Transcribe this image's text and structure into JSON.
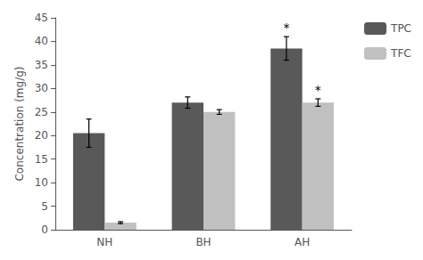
{
  "chart_data": {
    "type": "bar",
    "categories": [
      "NH",
      "BH",
      "AH"
    ],
    "series": [
      {
        "name": "TPC",
        "color": "#595959",
        "values": [
          20.5,
          27.0,
          38.5
        ],
        "errors": [
          3.0,
          1.2,
          2.5
        ]
      },
      {
        "name": "TFC",
        "color": "#c0c0c0",
        "values": [
          1.5,
          25.0,
          27.0
        ],
        "errors": [
          0.2,
          0.5,
          0.8
        ]
      }
    ],
    "ylabel": "Concentration (mg/g)",
    "ylim": [
      0,
      45
    ],
    "yticks": [
      0,
      5,
      10,
      15,
      20,
      25,
      30,
      35,
      40,
      45
    ],
    "annotations": [
      {
        "text": "*",
        "series": "TPC",
        "category": "AH"
      },
      {
        "text": "*",
        "series": "TFC",
        "category": "AH"
      }
    ],
    "grid": false,
    "legend": "right"
  }
}
